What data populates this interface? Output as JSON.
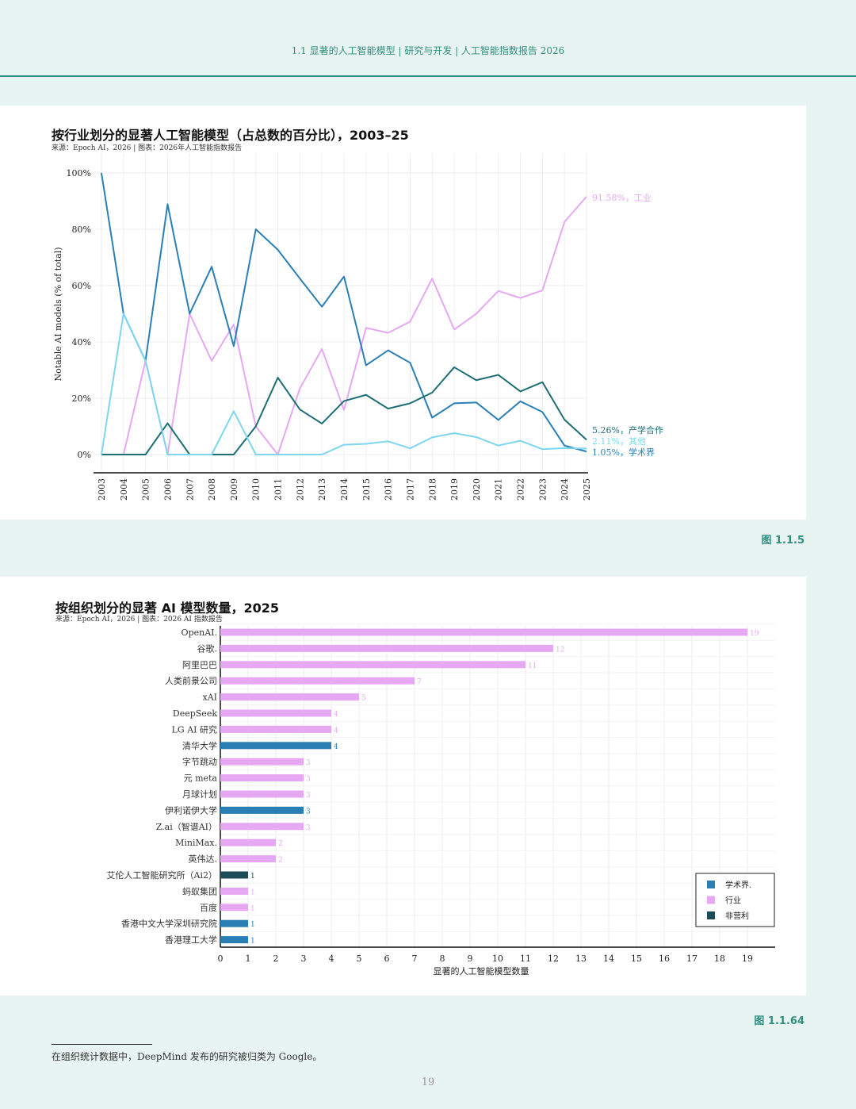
{
  "header": {
    "text": "1.1 显著的人工智能模型 | 研究与开发 | 人工智能指数报告 2026"
  },
  "figure1": {
    "title": "按行业划分的显著人工智能模型（占总数的百分比），2003–25",
    "source": "来源：Epoch AI，2026 | 图表：2026年人工智能指数报告",
    "label": "图 1.1.5",
    "series_labels": [
      "91.58%，工业",
      "5.26%，产学合作",
      "2.11%，其他",
      "1.05%，学术界"
    ]
  },
  "figure2": {
    "title": "按组织划分的显著 AI 模型数量，2025",
    "source": "来源：Epoch AI，2026 | 图表：2026 AI 指数报告",
    "label": "图 1.1.64"
  },
  "footnote": "在组织统计数据中，DeepMind 发布的研究被归类为 Google。",
  "page_number": "19",
  "chart_data": [
    {
      "type": "line",
      "x": [
        2003,
        2004,
        2005,
        2006,
        2007,
        2008,
        2009,
        2010,
        2011,
        2012,
        2013,
        2014,
        2015,
        2016,
        2017,
        2018,
        2019,
        2020,
        2021,
        2022,
        2023,
        2024,
        2025
      ],
      "ylabel": "Notable AI models (% of total)",
      "ylim": [
        0,
        100
      ],
      "yticks": [
        "0%",
        "20%",
        "40%",
        "60%",
        "80%",
        "100%"
      ],
      "series": [
        {
          "name": "工业",
          "color": "#e6a8f2",
          "values": [
            0,
            0,
            33.3,
            0,
            50,
            33.3,
            46.2,
            10,
            0,
            23.5,
            37.5,
            15.8,
            45,
            43.2,
            47.2,
            62.5,
            44.4,
            50,
            58.1,
            55.6,
            58.3,
            82.6,
            91.58
          ]
        },
        {
          "name": "学术界",
          "color": "#2a7fb5",
          "values": [
            100,
            50,
            33.3,
            88.9,
            50,
            66.7,
            38.5,
            80,
            72.7,
            62.5,
            52.5,
            63.2,
            31.7,
            37.0,
            32.6,
            13.1,
            18.2,
            18.5,
            12.3,
            18.9,
            15.1,
            3.2,
            1.05
          ]
        },
        {
          "name": "产学合作",
          "color": "#1c6e74",
          "values": [
            0,
            0,
            0,
            11.1,
            0,
            0,
            0,
            10,
            27.3,
            16,
            11,
            19,
            21.2,
            16.3,
            18.2,
            22,
            31,
            26.4,
            28.3,
            22.4,
            25.7,
            12.4,
            5.26
          ]
        },
        {
          "name": "其他",
          "color": "#7dd6ee",
          "values": [
            0,
            50,
            33.3,
            0,
            0,
            0,
            15.4,
            0,
            0,
            0,
            0,
            3.5,
            3.8,
            4.7,
            2.2,
            6.1,
            7.6,
            6.2,
            3.2,
            4.9,
            1.9,
            2.3,
            2.11
          ]
        }
      ]
    },
    {
      "type": "bar",
      "orientation": "horizontal",
      "xlabel": "显著的人工智能模型数量",
      "xlim": [
        0,
        19
      ],
      "xticks": [
        "0",
        "1",
        "2",
        "3",
        "4",
        "5",
        "6",
        "7",
        "8",
        "9",
        "10",
        "11",
        "12",
        "13",
        "14",
        "15",
        "16",
        "17",
        "18",
        "19"
      ],
      "legend": {
        "placement": "bottom-right",
        "entries": [
          {
            "name": "学术界.",
            "color": "#2a7fb5"
          },
          {
            "name": "行业",
            "color": "#e6a8f2"
          },
          {
            "name": "非营利",
            "color": "#1d4b57"
          }
        ]
      },
      "categories": [
        "OpenAI.",
        "谷歌.",
        "阿里巴巴",
        "人类前景公司",
        "xAI",
        "DeepSeek",
        "LG AI 研究",
        "清华大学",
        "字节跳动",
        "元 meta",
        "月球计划",
        "伊利诺伊大学",
        "Z.ai（智谱AI）",
        "MiniMax.",
        "英伟达.",
        "艾伦人工智能研究所（Ai2）",
        "蚂蚁集团",
        "百度",
        "香港中文大学深圳研究院",
        "香港理工大学"
      ],
      "values": [
        19,
        12,
        11,
        7,
        5,
        4,
        4,
        4,
        3,
        3,
        3,
        3,
        3,
        2,
        2,
        1,
        1,
        1,
        1,
        1
      ],
      "sectors": [
        "行业",
        "行业",
        "行业",
        "行业",
        "行业",
        "行业",
        "行业",
        "学术界",
        "行业",
        "行业",
        "行业",
        "学术界",
        "行业",
        "行业",
        "行业",
        "非营利",
        "行业",
        "行业",
        "学术界",
        "学术界"
      ]
    }
  ]
}
